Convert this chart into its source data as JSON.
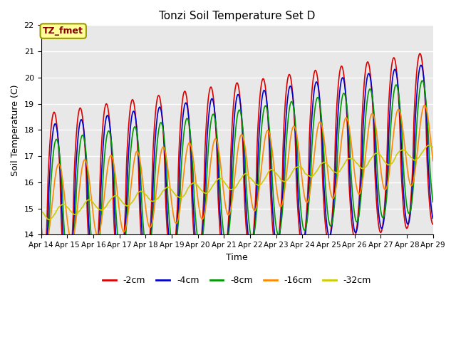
{
  "title": "Tonzi Soil Temperature Set D",
  "xlabel": "Time",
  "ylabel": "Soil Temperature (C)",
  "ylim": [
    14.0,
    22.0
  ],
  "yticks": [
    14.0,
    15.0,
    16.0,
    17.0,
    18.0,
    19.0,
    20.0,
    21.0,
    22.0
  ],
  "x_labels": [
    "Apr 14",
    "Apr 15",
    "Apr 16",
    "Apr 17",
    "Apr 18",
    "Apr 19",
    "Apr 20",
    "Apr 21",
    "Apr 22",
    "Apr 23",
    "Apr 24",
    "Apr 25",
    "Apr 26",
    "Apr 27",
    "Apr 28",
    "Apr 29"
  ],
  "annotation_label": "TZ_fmet",
  "annotation_box_color": "#ffff99",
  "annotation_border_color": "#999900",
  "series_colors": [
    "#dd0000",
    "#0000cc",
    "#009900",
    "#ff8800",
    "#cccc00"
  ],
  "legend_labels": [
    "-2cm",
    "-4cm",
    "-8cm",
    "-16cm",
    "-32cm"
  ],
  "background_color": "#e8e8e8",
  "grid_color": "#ffffff"
}
